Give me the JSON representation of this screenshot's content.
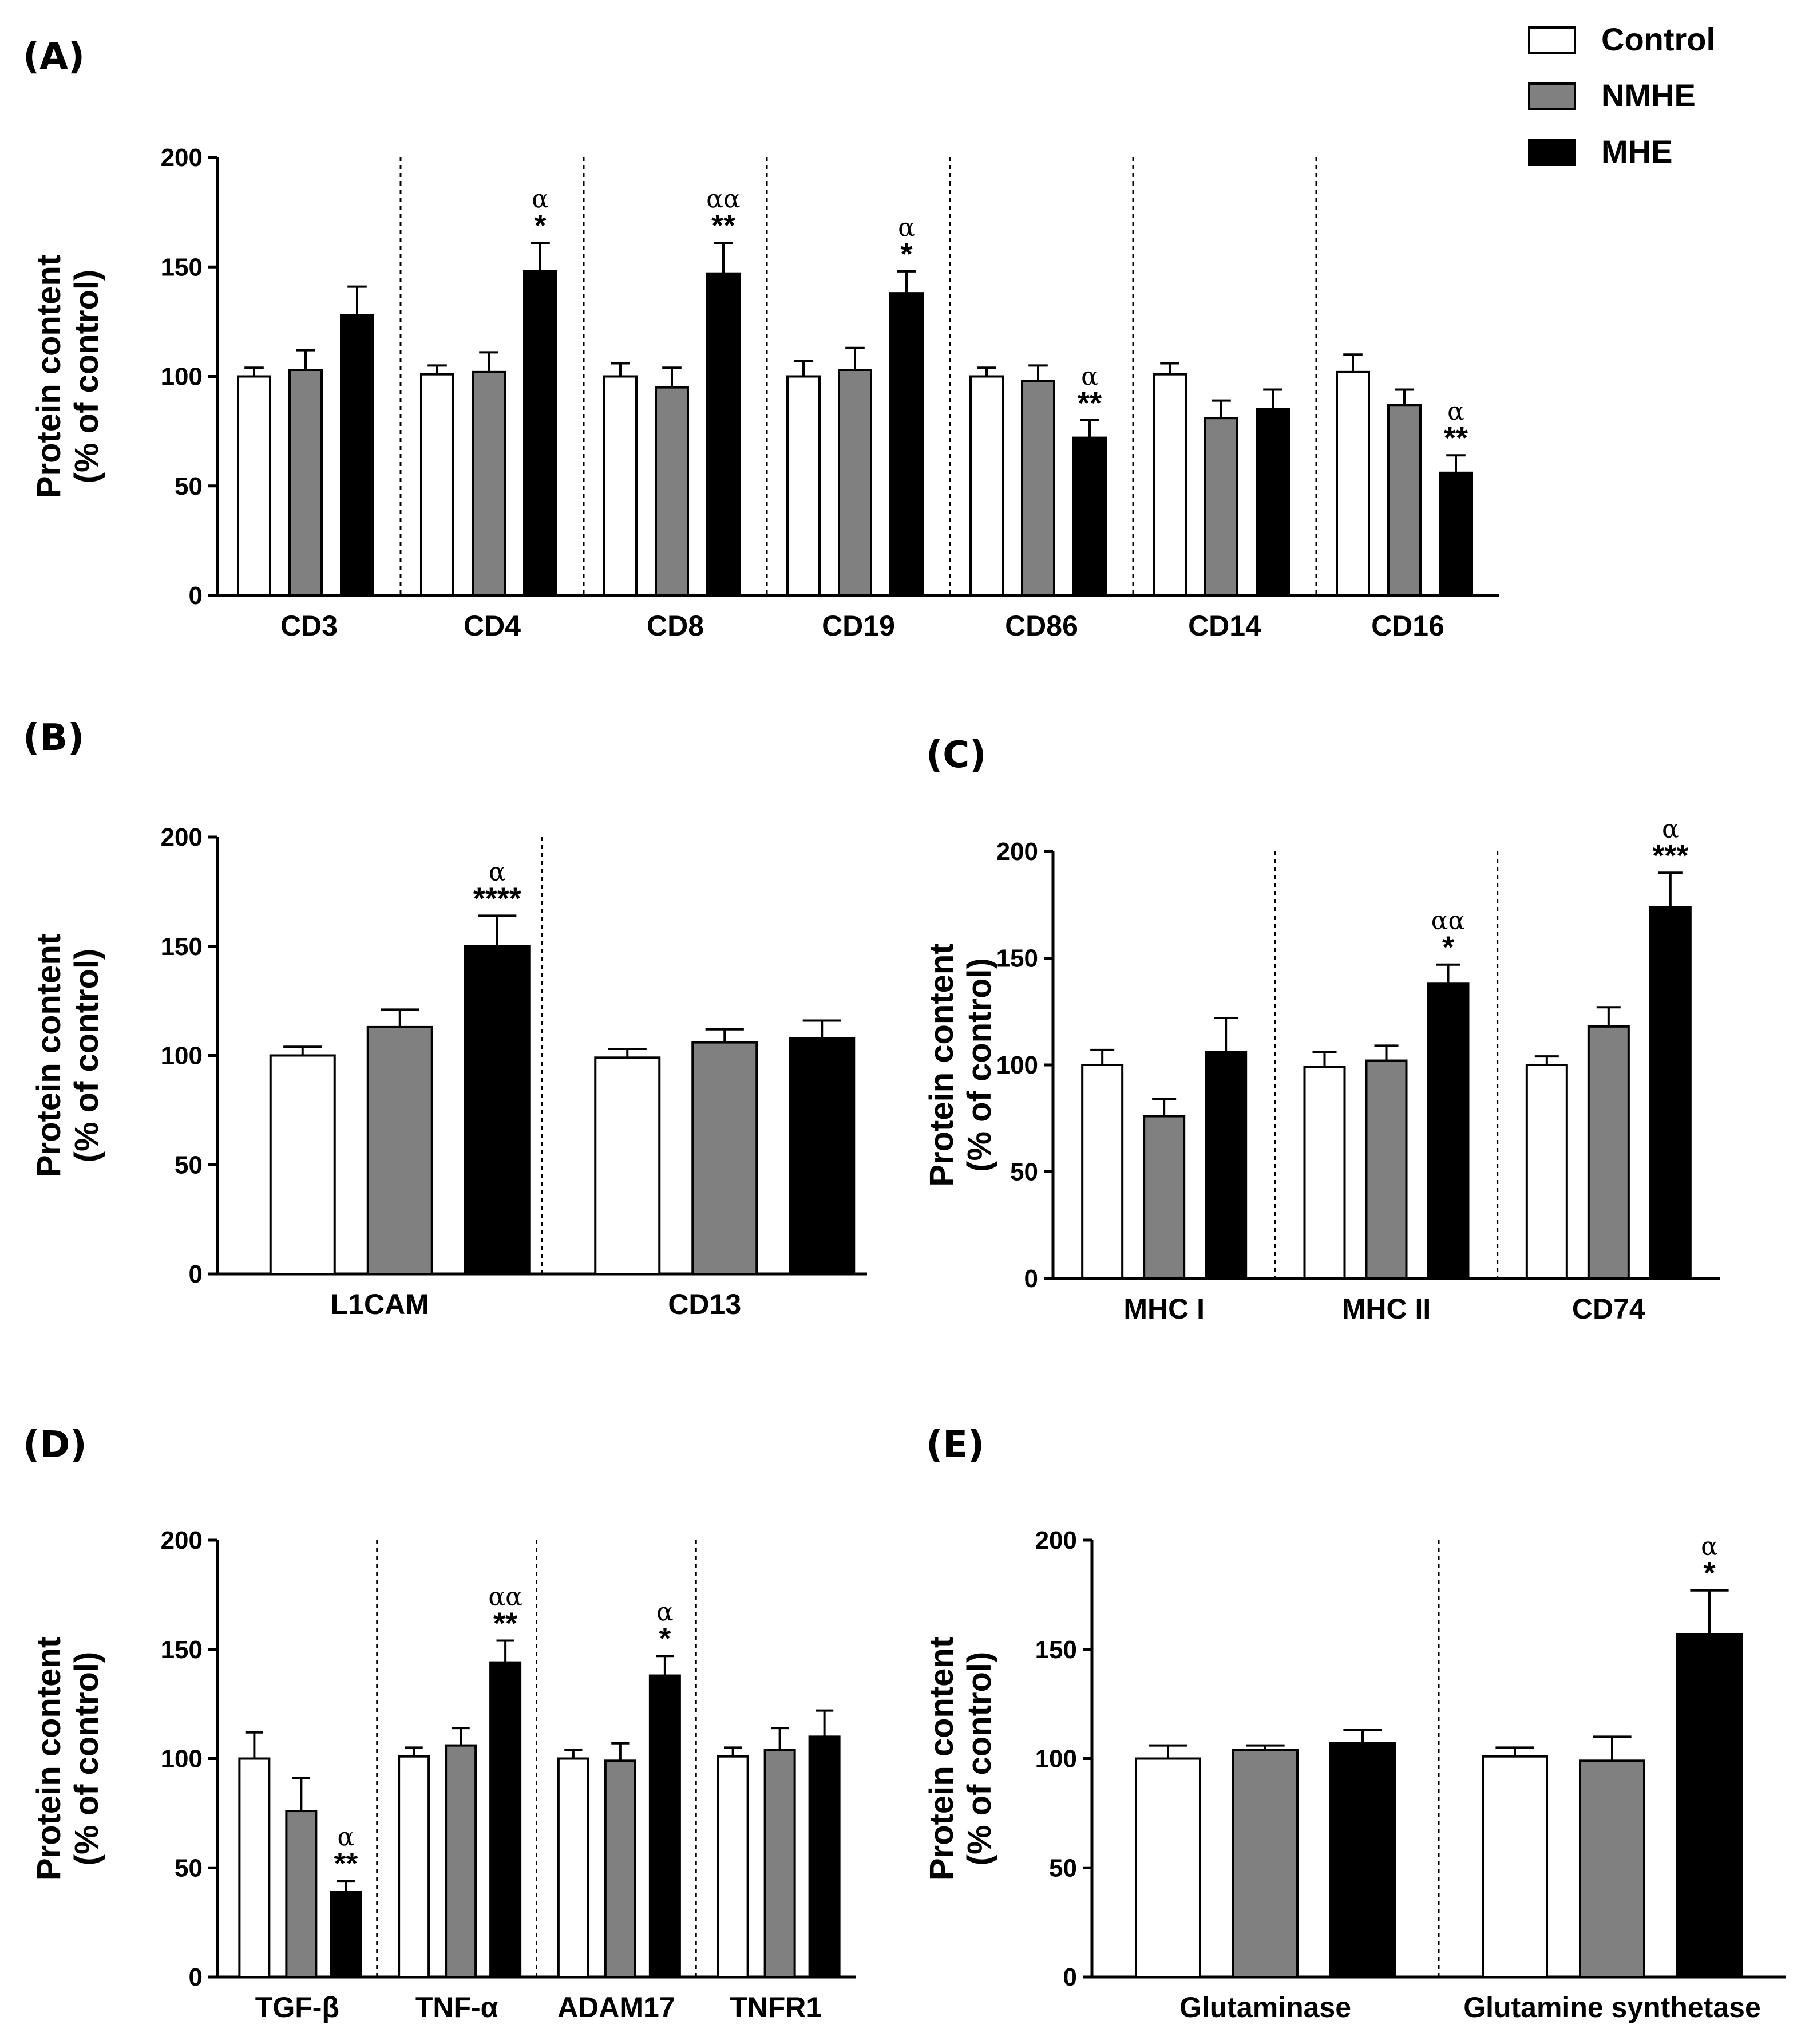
{
  "legend": [
    {
      "label": "Control",
      "color": "#ffffff"
    },
    {
      "label": "NMHE",
      "color": "#808080"
    },
    {
      "label": "MHE",
      "color": "#000000"
    }
  ],
  "y_ticks": [
    "0",
    "50",
    "100",
    "150",
    "200"
  ],
  "ylabel_line1": "Protein content",
  "ylabel_line2": "(% of control)",
  "chart_data": [
    {
      "panel": "(A)",
      "type": "bar",
      "ylim": [
        0,
        200
      ],
      "series_names": [
        "Control",
        "NMHE",
        "MHE"
      ],
      "groups": [
        {
          "label": "CD3",
          "values": [
            100,
            103,
            128
          ],
          "errors": [
            4,
            9,
            13
          ],
          "star": "",
          "alpha": ""
        },
        {
          "label": "CD4",
          "values": [
            101,
            102,
            148
          ],
          "errors": [
            4,
            9,
            13
          ],
          "star": "*",
          "alpha": "α"
        },
        {
          "label": "CD8",
          "values": [
            100,
            95,
            147
          ],
          "errors": [
            6,
            9,
            14
          ],
          "star": "**",
          "alpha": "αα"
        },
        {
          "label": "CD19",
          "values": [
            100,
            103,
            138
          ],
          "errors": [
            7,
            10,
            10
          ],
          "star": "*",
          "alpha": "α"
        },
        {
          "label": "CD86",
          "values": [
            100,
            98,
            72
          ],
          "errors": [
            4,
            7,
            8
          ],
          "star": "**",
          "alpha": "α"
        },
        {
          "label": "CD14",
          "values": [
            101,
            81,
            85
          ],
          "errors": [
            5,
            8,
            9
          ],
          "star": "",
          "alpha": ""
        },
        {
          "label": "CD16",
          "values": [
            102,
            87,
            56
          ],
          "errors": [
            8,
            7,
            8
          ],
          "star": "**",
          "alpha": "α"
        }
      ]
    },
    {
      "panel": "(B)",
      "type": "bar",
      "ylim": [
        0,
        200
      ],
      "series_names": [
        "Control",
        "NMHE",
        "MHE"
      ],
      "groups": [
        {
          "label": "L1CAM",
          "values": [
            100,
            113,
            150
          ],
          "errors": [
            4,
            8,
            14
          ],
          "star": "****",
          "alpha": "α"
        },
        {
          "label": "CD13",
          "values": [
            99,
            106,
            108
          ],
          "errors": [
            4,
            6,
            8
          ],
          "star": "",
          "alpha": ""
        }
      ]
    },
    {
      "panel": "(C)",
      "type": "bar",
      "ylim": [
        0,
        200
      ],
      "series_names": [
        "Control",
        "NMHE",
        "MHE"
      ],
      "groups": [
        {
          "label": "MHC I",
          "values": [
            100,
            76,
            106
          ],
          "errors": [
            7,
            8,
            16
          ],
          "star": "",
          "alpha": ""
        },
        {
          "label": "MHC II",
          "values": [
            99,
            102,
            138
          ],
          "errors": [
            7,
            7,
            9
          ],
          "star": "*",
          "alpha": "αα"
        },
        {
          "label": "CD74",
          "values": [
            100,
            118,
            174
          ],
          "errors": [
            4,
            9,
            16
          ],
          "star": "***",
          "alpha": "α"
        }
      ]
    },
    {
      "panel": "(D)",
      "type": "bar",
      "ylim": [
        0,
        200
      ],
      "series_names": [
        "Control",
        "NMHE",
        "MHE"
      ],
      "groups": [
        {
          "label": "TGF-β",
          "values": [
            100,
            76,
            39
          ],
          "errors": [
            12,
            15,
            5
          ],
          "star": "**",
          "alpha": "α"
        },
        {
          "label": "TNF-α",
          "values": [
            101,
            106,
            144
          ],
          "errors": [
            4,
            8,
            10
          ],
          "star": "**",
          "alpha": "αα"
        },
        {
          "label": "ADAM17",
          "values": [
            100,
            99,
            138
          ],
          "errors": [
            4,
            8,
            9
          ],
          "star": "*",
          "alpha": "α"
        },
        {
          "label": "TNFR1",
          "values": [
            101,
            104,
            110
          ],
          "errors": [
            4,
            10,
            12
          ],
          "star": "",
          "alpha": ""
        }
      ]
    },
    {
      "panel": "(E)",
      "type": "bar",
      "ylim": [
        0,
        200
      ],
      "series_names": [
        "Control",
        "NMHE",
        "MHE"
      ],
      "groups": [
        {
          "label": "Glutaminase",
          "values": [
            100,
            104,
            107
          ],
          "errors": [
            6,
            2,
            6
          ],
          "star": "",
          "alpha": ""
        },
        {
          "label": "Glutamine synthetase",
          "values": [
            101,
            99,
            157
          ],
          "errors": [
            4,
            11,
            20
          ],
          "star": "*",
          "alpha": "α"
        }
      ]
    }
  ]
}
